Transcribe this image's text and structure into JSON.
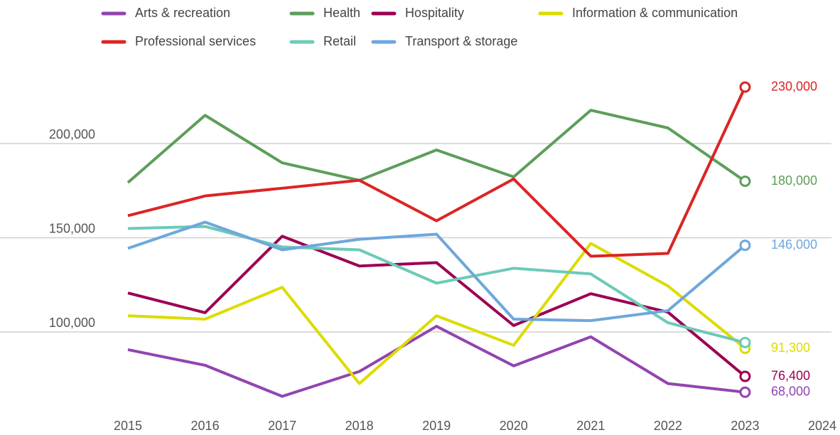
{
  "chart_data": {
    "type": "line",
    "x": [
      2015,
      2016,
      2017,
      2018,
      2019,
      2020,
      2021,
      2022,
      2023
    ],
    "xlim": [
      2015,
      2024
    ],
    "xticks": [
      2015,
      2016,
      2017,
      2018,
      2019,
      2020,
      2021,
      2022,
      2023,
      2024
    ],
    "ylim": [
      60000,
      240000
    ],
    "yticks": [
      {
        "value": 100000,
        "label": "100,000"
      },
      {
        "value": 150000,
        "label": "150,000"
      },
      {
        "value": 200000,
        "label": "200,000"
      }
    ],
    "grid": true,
    "legend": "top",
    "series": [
      {
        "name": "Arts & recreation",
        "color": "#9244b0",
        "values": [
          90600,
          82300,
          65800,
          79000,
          103000,
          82000,
          97400,
          72600,
          68000
        ],
        "value_labels": [
          null,
          null,
          null,
          null,
          null,
          null,
          null,
          null,
          "68,000"
        ]
      },
      {
        "name": "Health",
        "color": "#5c9e5a",
        "values": [
          179300,
          215000,
          189800,
          180500,
          196600,
          182300,
          217700,
          208300,
          180000
        ],
        "value_labels": [
          null,
          null,
          null,
          null,
          null,
          null,
          null,
          null,
          "180,000"
        ]
      },
      {
        "name": "Hospitality",
        "color": "#9c0052",
        "values": [
          120700,
          110200,
          150800,
          135000,
          136800,
          103400,
          120300,
          110500,
          76400
        ],
        "value_labels": [
          null,
          null,
          null,
          null,
          null,
          null,
          null,
          null,
          "76,400"
        ]
      },
      {
        "name": "Information & communication",
        "color": "#dcdc00",
        "values": [
          108600,
          106800,
          123700,
          72600,
          108600,
          92900,
          147000,
          124400,
          91300
        ],
        "value_labels": [
          null,
          null,
          null,
          null,
          null,
          null,
          null,
          null,
          "91,300"
        ]
      },
      {
        "name": "Professional services",
        "color": "#dc2424",
        "values": [
          161700,
          172200,
          176300,
          180500,
          159000,
          181200,
          140200,
          141700,
          230000
        ],
        "value_labels": [
          null,
          null,
          null,
          null,
          null,
          null,
          null,
          null,
          "230,000"
        ]
      },
      {
        "name": "Retail",
        "color": "#6ccab8",
        "values": [
          154900,
          156000,
          145100,
          143600,
          125900,
          133800,
          130800,
          104900,
          94400
        ]
      },
      {
        "name": "Transport & storage",
        "color": "#6ea7dc",
        "values": [
          144400,
          158300,
          143600,
          149200,
          151900,
          106800,
          106000,
          111300,
          146000
        ],
        "value_labels": [
          null,
          null,
          null,
          null,
          null,
          null,
          null,
          null,
          "146,000"
        ]
      }
    ]
  }
}
